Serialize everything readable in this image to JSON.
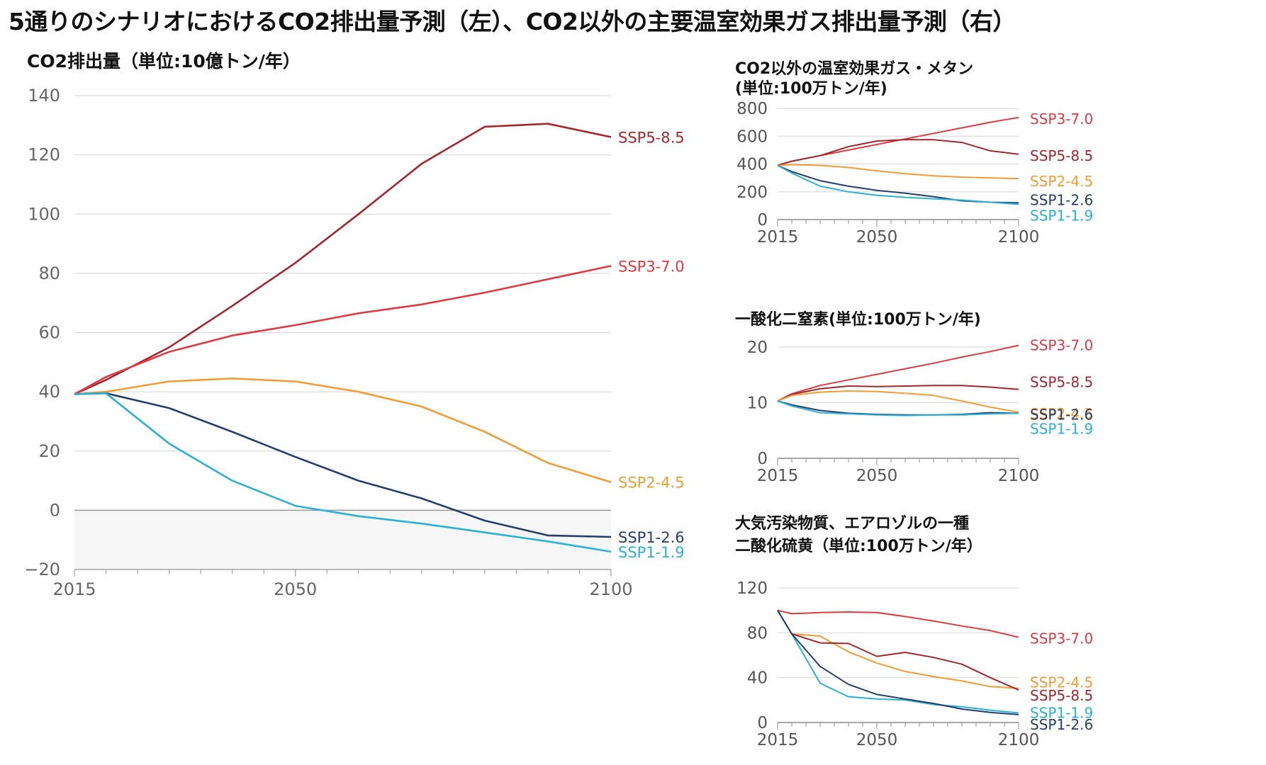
{
  "page_title": "5通りのシナリオにおけるCO2排出量予測（左）、CO2以外の主要温室効果ガス排出量予測（右）",
  "colors": {
    "SSP5-8.5": "#a3282e",
    "SSP3-7.0": "#e03a43",
    "SSP2-4.5": "#f39c33",
    "SSP1-2.6": "#263f6a",
    "SSP1-1.9": "#2bb1d6"
  },
  "chart_data": [
    {
      "type": "line",
      "title": "CO2排出量（単位:10億トン/年）",
      "xlim": [
        2015,
        2100
      ],
      "ylim": [
        -20,
        140
      ],
      "xticks": [
        2015,
        2050,
        2100
      ],
      "yticks": [
        -20,
        0,
        20,
        40,
        60,
        80,
        100,
        120,
        140
      ],
      "x": [
        2015,
        2020,
        2030,
        2040,
        2050,
        2060,
        2070,
        2080,
        2090,
        2100
      ],
      "series": [
        {
          "name": "SSP5-8.5",
          "values": [
            39.2,
            44,
            55,
            69,
            83.5,
            100,
            117,
            129.5,
            130.5,
            126
          ]
        },
        {
          "name": "SSP3-7.0",
          "values": [
            39.2,
            45,
            53.5,
            59,
            62.5,
            66.5,
            69.5,
            73.5,
            78,
            82.5
          ]
        },
        {
          "name": "SSP2-4.5",
          "values": [
            39.2,
            40,
            43.5,
            44.5,
            43.5,
            40,
            35,
            26.5,
            16,
            9.5
          ]
        },
        {
          "name": "SSP1-2.6",
          "values": [
            39.2,
            39.5,
            34.5,
            26.5,
            18,
            10,
            4,
            -3.5,
            -8.5,
            -9
          ]
        },
        {
          "name": "SSP1-1.9",
          "values": [
            39.2,
            39.5,
            22.5,
            10,
            1.5,
            -2,
            -4.5,
            -7.5,
            -10.5,
            -14
          ]
        }
      ]
    },
    {
      "type": "line",
      "title": "CO2以外の温室効果ガス・メタン",
      "subtitle": "(単位:100万トン/年)",
      "xlim": [
        2015,
        2100
      ],
      "ylim": [
        0,
        800
      ],
      "xticks": [
        2015,
        2050,
        2100
      ],
      "yticks": [
        0,
        200,
        400,
        600,
        800
      ],
      "x": [
        2015,
        2020,
        2030,
        2040,
        2050,
        2060,
        2070,
        2080,
        2090,
        2100
      ],
      "series": [
        {
          "name": "SSP3-7.0",
          "values": [
            390,
            420,
            460,
            500,
            540,
            580,
            620,
            660,
            700,
            735
          ]
        },
        {
          "name": "SSP5-8.5",
          "values": [
            390,
            420,
            460,
            525,
            565,
            575,
            575,
            555,
            495,
            470
          ]
        },
        {
          "name": "SSP2-4.5",
          "values": [
            390,
            395,
            390,
            375,
            350,
            330,
            315,
            305,
            300,
            295
          ]
        },
        {
          "name": "SSP1-2.6",
          "values": [
            390,
            345,
            280,
            240,
            210,
            190,
            165,
            135,
            125,
            120
          ]
        },
        {
          "name": "SSP1-1.9",
          "values": [
            390,
            335,
            240,
            200,
            175,
            160,
            150,
            140,
            125,
            110
          ]
        }
      ]
    },
    {
      "type": "line",
      "title": "一酸化二窒素(単位:100万トン/年)",
      "xlim": [
        2015,
        2100
      ],
      "ylim": [
        0,
        20
      ],
      "xticks": [
        2015,
        2050,
        2100
      ],
      "yticks": [
        0,
        10,
        20
      ],
      "x": [
        2015,
        2020,
        2030,
        2040,
        2050,
        2060,
        2070,
        2080,
        2090,
        2100
      ],
      "series": [
        {
          "name": "SSP3-7.0",
          "values": [
            10.3,
            11.6,
            13.1,
            14.1,
            15.1,
            16.1,
            17.1,
            18.2,
            19.2,
            20.3
          ]
        },
        {
          "name": "SSP5-8.5",
          "values": [
            10.3,
            11.5,
            12.5,
            13.0,
            12.9,
            13.0,
            13.1,
            13.1,
            12.8,
            12.4
          ]
        },
        {
          "name": "SSP2-4.5",
          "values": [
            10.3,
            11.3,
            11.9,
            12.1,
            12.0,
            11.7,
            11.3,
            10.3,
            9.2,
            8.3
          ]
        },
        {
          "name": "SSP1-2.6",
          "values": [
            10.3,
            9.6,
            8.6,
            8.1,
            7.9,
            7.8,
            7.8,
            7.9,
            8.2,
            8.1
          ]
        },
        {
          "name": "SSP1-1.9",
          "values": [
            10.3,
            9.4,
            8.2,
            8.0,
            7.8,
            7.7,
            7.8,
            7.8,
            8.0,
            8.1
          ]
        }
      ]
    },
    {
      "type": "line",
      "title": "大気汚染物質、エアロゾルの一種",
      "subtitle": "二酸化硫黄（単位:100万トン/年）",
      "xlim": [
        2015,
        2100
      ],
      "ylim": [
        0,
        120
      ],
      "xticks": [
        2015,
        2050,
        2100
      ],
      "yticks": [
        0,
        40,
        80,
        120
      ],
      "x": [
        2015,
        2020,
        2030,
        2040,
        2050,
        2060,
        2070,
        2080,
        2090,
        2100
      ],
      "series": [
        {
          "name": "SSP3-7.0",
          "values": [
            100,
            97,
            98,
            98.5,
            98,
            94.5,
            90.5,
            86,
            82,
            76
          ]
        },
        {
          "name": "SSP2-4.5",
          "values": [
            100,
            79,
            77,
            63,
            53,
            45.5,
            41,
            37,
            32,
            30.5
          ]
        },
        {
          "name": "SSP5-8.5",
          "values": [
            100,
            79,
            71,
            70.5,
            59,
            62.5,
            58,
            52,
            40,
            29
          ]
        },
        {
          "name": "SSP1-1.9",
          "values": [
            100,
            79,
            35,
            23,
            21,
            20,
            16,
            14,
            11,
            8.5
          ]
        },
        {
          "name": "SSP1-2.6",
          "values": [
            100,
            79,
            50,
            34,
            25,
            21,
            17,
            12,
            9,
            7
          ]
        }
      ]
    }
  ]
}
